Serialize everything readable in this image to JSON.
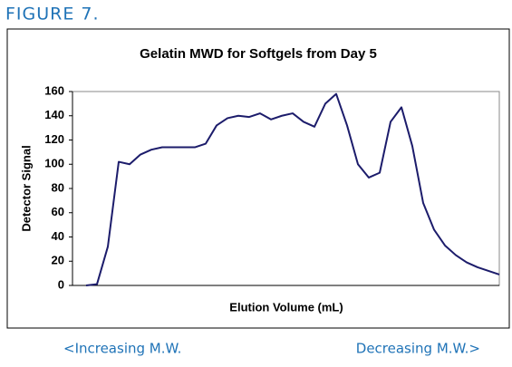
{
  "figure_label": "FIGURE 7.",
  "chart_data": {
    "type": "line",
    "title": "Gelatin MWD for Softgels from Day 5",
    "ylabel": "Detector Signal",
    "xlabel": "Elution Volume (mL)",
    "values": [
      0,
      1,
      32,
      102,
      100,
      108,
      112,
      114,
      114,
      114,
      114,
      117,
      132,
      138,
      140,
      139,
      142,
      137,
      140,
      142,
      135,
      131,
      150,
      158,
      132,
      100,
      89,
      93,
      135,
      147,
      115,
      68,
      46,
      33,
      25,
      19,
      15,
      12,
      9
    ],
    "color": "#1c1c6b",
    "ylim": [
      0,
      160
    ],
    "yticks": [
      0,
      20,
      40,
      60,
      80,
      100,
      120,
      140,
      160
    ],
    "grid": false
  },
  "footer": {
    "left": "<Increasing M.W.",
    "right": "Decreasing M.W.>"
  }
}
